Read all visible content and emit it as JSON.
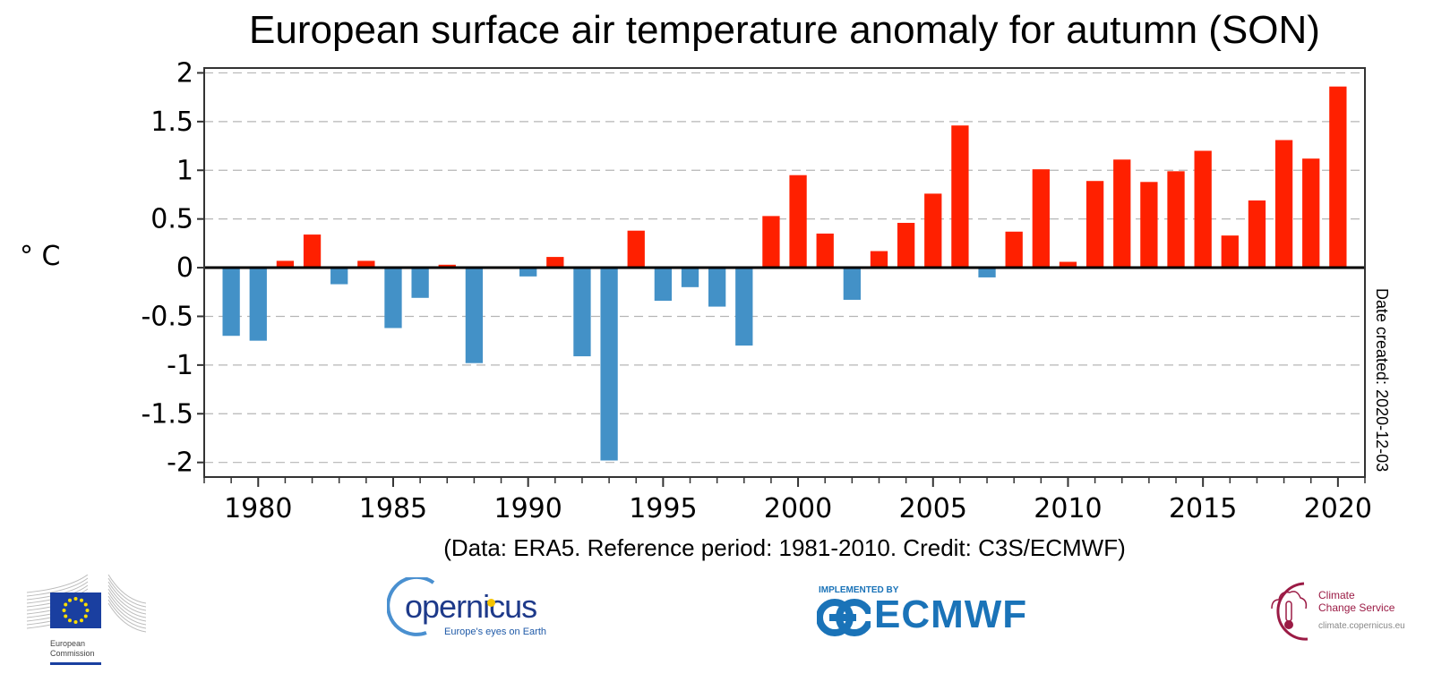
{
  "chart_data": {
    "type": "bar",
    "title": "European surface air temperature anomaly for autumn (SON)",
    "xlabel": "",
    "ylabel": "° C",
    "x": [
      1979,
      1980,
      1981,
      1982,
      1983,
      1984,
      1985,
      1986,
      1987,
      1988,
      1989,
      1990,
      1991,
      1992,
      1993,
      1994,
      1995,
      1996,
      1997,
      1998,
      1999,
      2000,
      2001,
      2002,
      2003,
      2004,
      2005,
      2006,
      2007,
      2008,
      2009,
      2010,
      2011,
      2012,
      2013,
      2014,
      2015,
      2016,
      2017,
      2018,
      2019,
      2020
    ],
    "values": [
      -0.7,
      -0.75,
      0.07,
      0.34,
      -0.17,
      0.07,
      -0.62,
      -0.31,
      0.03,
      -0.98,
      0.01,
      -0.09,
      0.11,
      -0.91,
      -1.98,
      0.38,
      -0.34,
      -0.2,
      -0.4,
      -0.8,
      0.53,
      0.95,
      0.35,
      -0.33,
      0.17,
      0.46,
      0.76,
      1.46,
      -0.1,
      0.37,
      1.01,
      0.06,
      0.89,
      1.11,
      0.88,
      0.99,
      1.2,
      0.33,
      0.69,
      1.31,
      1.12,
      1.86
    ],
    "xlim": [
      1978,
      2021
    ],
    "ylim": [
      -2.15,
      2.05
    ],
    "xticks": [
      1980,
      1985,
      1990,
      1995,
      2000,
      2005,
      2010,
      2015,
      2020
    ],
    "xtick_labels": [
      "1980",
      "1985",
      "1990",
      "1995",
      "2000",
      "2005",
      "2010",
      "2015",
      "2020"
    ],
    "yticks": [
      2,
      1.5,
      1,
      0.5,
      0,
      -0.5,
      -1,
      -1.5,
      -2
    ],
    "ytick_labels": [
      "2",
      "1.5",
      "1",
      "0.5",
      "0",
      "-0.5",
      "-1",
      "-1.5",
      "-2"
    ],
    "grid": true,
    "colors": {
      "positive": "#ff2000",
      "negative": "#4391c7"
    },
    "footnote": "(Data: ERA5.  Reference period: 1981-2010.  Credit: C3S/ECMWF)",
    "side_annotation": "Date created: 2020-12-03"
  },
  "logos": {
    "ec": {
      "line1": "European",
      "line2": "Commission"
    },
    "copernicus": {
      "word": "opernicus",
      "initial": "C",
      "tagline": "Europe's eyes on Earth"
    },
    "ecmwf": {
      "implemented_by": "IMPLEMENTED BY",
      "word": "ECMWF"
    },
    "c3s": {
      "line1": "Climate",
      "line2": "Change Service",
      "url": "climate.copernicus.eu"
    }
  }
}
